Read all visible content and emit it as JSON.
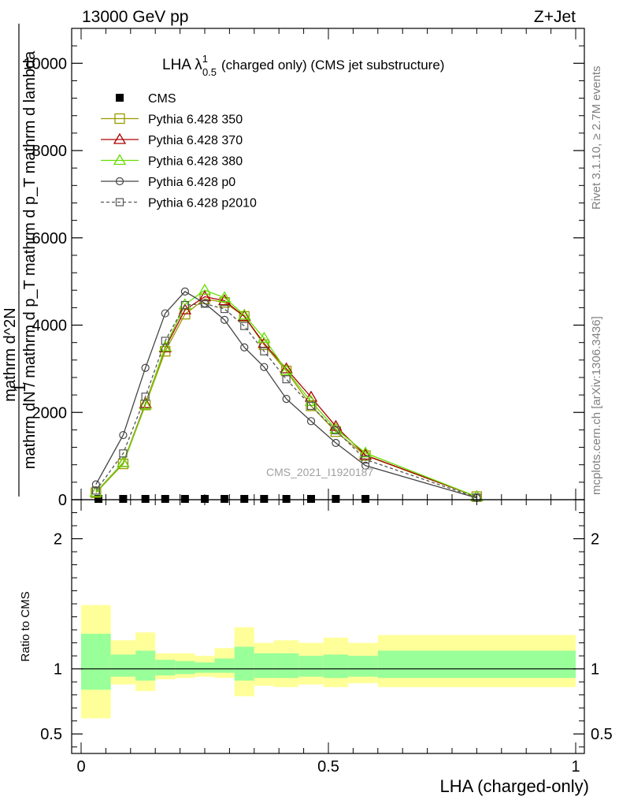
{
  "header": {
    "left": "13000 GeV pp",
    "right": "Z+Jet"
  },
  "side_labels": {
    "rivet": "Rivet 3.1.10, ≥ 2.7M events",
    "mcplots": "mcplots.cern.ch [arXiv:1306.3436]"
  },
  "watermark": "CMS_2021_I1920187",
  "chart_data": [
    {
      "type": "line",
      "title": {
        "main": "LHA λ",
        "sup": "1",
        "sub": "0.5",
        "rest": "(charged only) (CMS jet substructure)"
      },
      "ylabel": {
        "one": "1",
        "num": "mathrm d^2N",
        "den": "mathrm dN / mathrm d p_T mathrm d p_T mathrm d lambda"
      },
      "xlim": [
        0,
        1
      ],
      "ylim": [
        0,
        10800
      ],
      "yticks": [
        {
          "value": 0,
          "label": "0"
        },
        {
          "value": 2000,
          "label": "2000"
        },
        {
          "value": 4000,
          "label": "4000"
        },
        {
          "value": 6000,
          "label": "6000"
        },
        {
          "value": 8000,
          "label": "8000"
        },
        {
          "value": 10000,
          "label": "10000"
        }
      ],
      "legend_position": "top-left",
      "series": [
        {
          "name": "CMS",
          "style": "data",
          "color": "#000000",
          "x": [
            0.035,
            0.085,
            0.13,
            0.17,
            0.21,
            0.25,
            0.29,
            0.33,
            0.37,
            0.415,
            0.465,
            0.515,
            0.575
          ],
          "y": [
            0,
            0,
            0,
            0,
            0,
            0,
            0,
            0,
            0,
            0,
            0,
            0,
            0
          ]
        },
        {
          "name": "Pythia 6.428 350",
          "style": "square-open",
          "color": "#999900",
          "dash": false,
          "x": [
            0.03,
            0.085,
            0.13,
            0.17,
            0.21,
            0.25,
            0.29,
            0.33,
            0.37,
            0.415,
            0.465,
            0.515,
            0.575,
            0.8
          ],
          "y": [
            160,
            820,
            2170,
            3400,
            4250,
            4600,
            4520,
            4200,
            3550,
            2950,
            2150,
            1560,
            1010,
            70
          ]
        },
        {
          "name": "Pythia 6.428 370",
          "style": "triangle-open",
          "color": "#aa0000",
          "dash": false,
          "x": [
            0.03,
            0.085,
            0.13,
            0.17,
            0.21,
            0.25,
            0.29,
            0.33,
            0.37,
            0.415,
            0.465,
            0.515,
            0.575,
            0.8
          ],
          "y": [
            170,
            850,
            2200,
            3480,
            4350,
            4650,
            4560,
            4200,
            3580,
            3000,
            2350,
            1680,
            1020,
            70
          ]
        },
        {
          "name": "Pythia 6.428 380",
          "style": "triangle-open",
          "color": "#66dd00",
          "dash": false,
          "x": [
            0.03,
            0.085,
            0.13,
            0.17,
            0.21,
            0.25,
            0.29,
            0.33,
            0.37,
            0.415,
            0.465,
            0.515,
            0.575,
            0.8
          ],
          "y": [
            170,
            850,
            2170,
            3500,
            4470,
            4800,
            4630,
            4230,
            3700,
            2960,
            2250,
            1620,
            1070,
            70
          ]
        },
        {
          "name": "Pythia 6.428 p0",
          "style": "circle-open",
          "color": "#444444",
          "dash": false,
          "x": [
            0.03,
            0.085,
            0.13,
            0.17,
            0.21,
            0.25,
            0.29,
            0.33,
            0.37,
            0.415,
            0.465,
            0.515,
            0.575,
            0.8
          ],
          "y": [
            350,
            1480,
            3020,
            4270,
            4770,
            4500,
            4120,
            3490,
            3040,
            2310,
            1800,
            1300,
            780,
            40
          ]
        },
        {
          "name": "Pythia 6.428 p2010",
          "style": "square-open-small",
          "color": "#555555",
          "dash": true,
          "x": [
            0.03,
            0.085,
            0.13,
            0.17,
            0.21,
            0.25,
            0.29,
            0.33,
            0.37,
            0.415,
            0.465,
            0.515,
            0.575,
            0.8
          ],
          "y": [
            210,
            1060,
            2360,
            3640,
            4460,
            4490,
            4370,
            3980,
            3400,
            2760,
            2150,
            1590,
            920,
            50
          ]
        }
      ]
    },
    {
      "type": "area",
      "xlabel": "LHA (charged-only)",
      "ylabel": "Ratio to CMS",
      "xlim": [
        0,
        1
      ],
      "ylim": [
        0.35,
        2.3
      ],
      "yticks": [
        {
          "value": 0.5,
          "label": "0.5"
        },
        {
          "value": 1,
          "label": "1"
        },
        {
          "value": 2,
          "label": "2"
        }
      ],
      "xticks": [
        {
          "value": 0,
          "label": "0"
        },
        {
          "value": 0.5,
          "label": "0.5"
        },
        {
          "value": 1,
          "label": "1"
        }
      ],
      "reference": 1,
      "colors": {
        "outer": "#ffff99",
        "inner": "#99ff99",
        "line": "#000000"
      },
      "bands": [
        {
          "x0": 0.0,
          "x1": 0.06,
          "lo2": 0.62,
          "lo1": 0.84,
          "hi1": 1.27,
          "hi2": 1.49
        },
        {
          "x0": 0.06,
          "x1": 0.11,
          "lo2": 0.88,
          "lo1": 0.94,
          "hi1": 1.11,
          "hi2": 1.22
        },
        {
          "x0": 0.11,
          "x1": 0.15,
          "lo2": 0.83,
          "lo1": 0.91,
          "hi1": 1.14,
          "hi2": 1.28
        },
        {
          "x0": 0.15,
          "x1": 0.19,
          "lo2": 0.92,
          "lo1": 0.95,
          "hi1": 1.07,
          "hi2": 1.12
        },
        {
          "x0": 0.19,
          "x1": 0.23,
          "lo2": 0.93,
          "lo1": 0.96,
          "hi1": 1.06,
          "hi2": 1.12
        },
        {
          "x0": 0.23,
          "x1": 0.27,
          "lo2": 0.94,
          "lo1": 0.97,
          "hi1": 1.05,
          "hi2": 1.1
        },
        {
          "x0": 0.27,
          "x1": 0.31,
          "lo2": 0.93,
          "lo1": 0.97,
          "hi1": 1.08,
          "hi2": 1.16
        },
        {
          "x0": 0.31,
          "x1": 0.35,
          "lo2": 0.79,
          "lo1": 0.91,
          "hi1": 1.17,
          "hi2": 1.32
        },
        {
          "x0": 0.35,
          "x1": 0.39,
          "lo2": 0.87,
          "lo1": 0.93,
          "hi1": 1.12,
          "hi2": 1.2
        },
        {
          "x0": 0.39,
          "x1": 0.44,
          "lo2": 0.86,
          "lo1": 0.93,
          "hi1": 1.12,
          "hi2": 1.22
        },
        {
          "x0": 0.44,
          "x1": 0.49,
          "lo2": 0.88,
          "lo1": 0.94,
          "hi1": 1.1,
          "hi2": 1.2
        },
        {
          "x0": 0.49,
          "x1": 0.54,
          "lo2": 0.86,
          "lo1": 0.93,
          "hi1": 1.11,
          "hi2": 1.24
        },
        {
          "x0": 0.54,
          "x1": 0.6,
          "lo2": 0.89,
          "lo1": 0.94,
          "hi1": 1.1,
          "hi2": 1.2
        },
        {
          "x0": 0.6,
          "x1": 1.0,
          "lo2": 0.86,
          "lo1": 0.93,
          "hi1": 1.14,
          "hi2": 1.26
        }
      ]
    }
  ]
}
